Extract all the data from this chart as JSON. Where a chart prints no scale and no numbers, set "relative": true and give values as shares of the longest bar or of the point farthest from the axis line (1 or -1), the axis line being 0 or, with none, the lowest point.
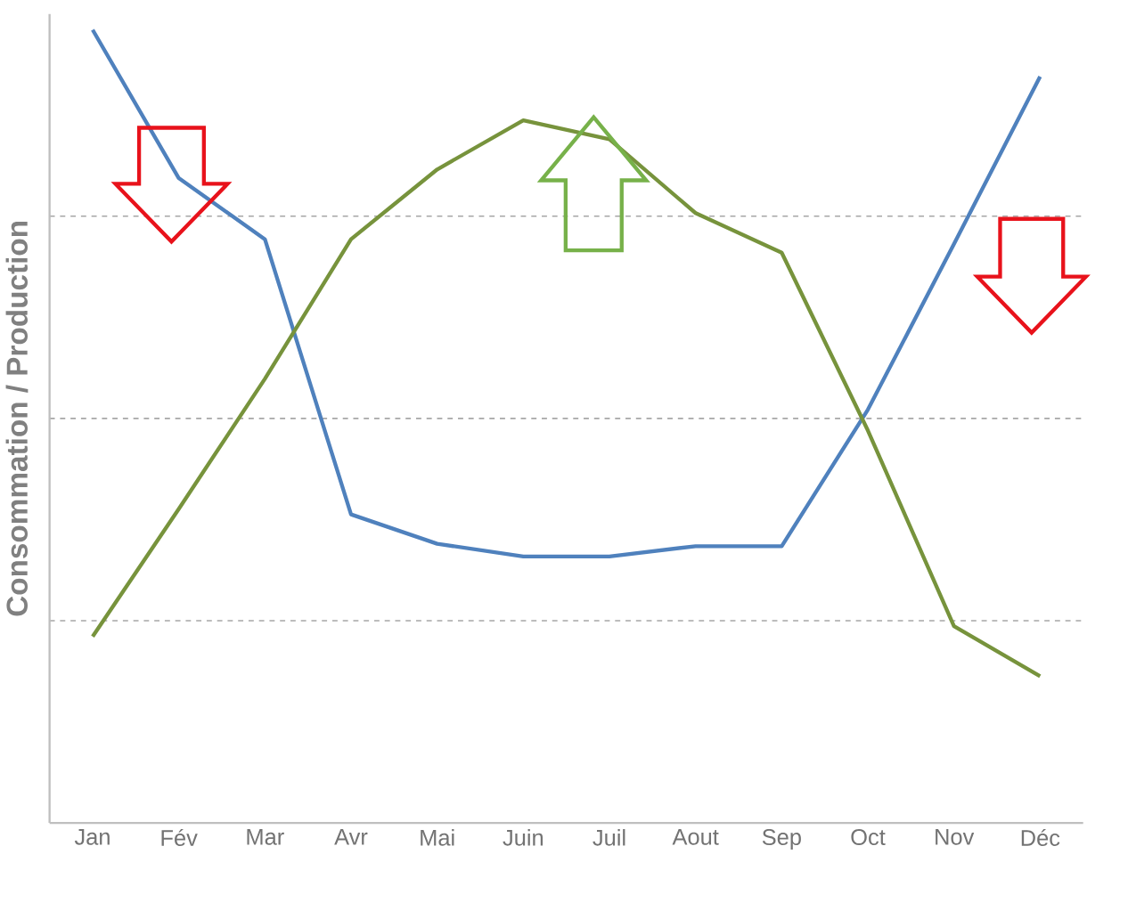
{
  "chart_data": {
    "type": "line",
    "ylabel": "Consommation / Production",
    "categories": [
      "Jan",
      "Fév",
      "Mar",
      "Avr",
      "Mai",
      "Juin",
      "Juil",
      "Aout",
      "Sep",
      "Oct",
      "Nov",
      "Déc"
    ],
    "relative": true,
    "grid": "y",
    "series": [
      {
        "color": "#4f81bd",
        "values": [
          1,
          0.813,
          0.736,
          0.389,
          0.352,
          0.336,
          0.336,
          0.349,
          0.349,
          0.521,
          0.73,
          0.941
        ]
      },
      {
        "color": "#77933c",
        "values": [
          0.235,
          0.396,
          0.56,
          0.736,
          0.824,
          0.886,
          0.862,
          0.769,
          0.719,
          0.495,
          0.248,
          0.185
        ]
      }
    ]
  }
}
